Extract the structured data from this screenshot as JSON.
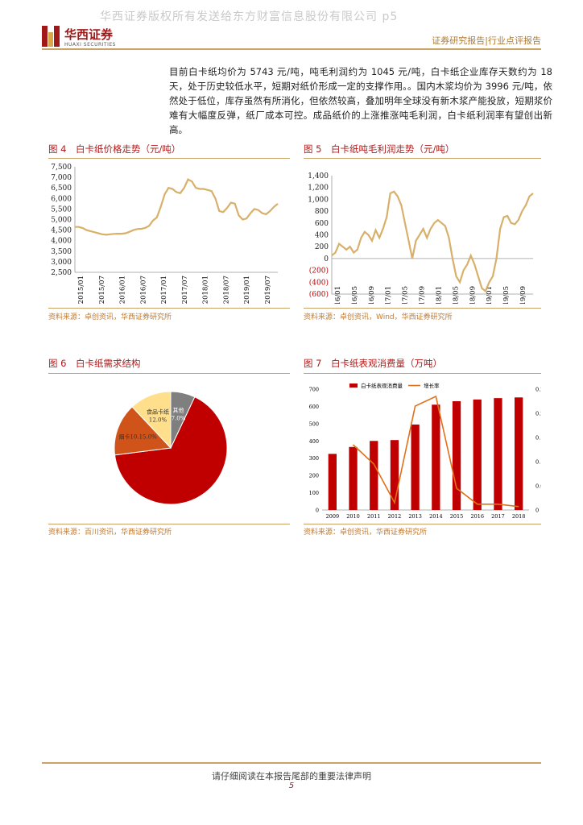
{
  "watermark": "华西证券版权所有发送给东方财富信息股份有限公司 p5",
  "logo": {
    "cn": "华西证券",
    "en": "HUAXI SECURITIES"
  },
  "header_right": "证券研究报告|行业点评报告",
  "paragraph": "目前白卡纸均价为 5743 元/吨，吨毛利润约为 1045 元/吨，白卡纸企业库存天数约为 18 天，处于历史较低水平，短期对纸价形成一定的支撑作用。。国内木浆均价为 3996 元/吨，依然处于低位，库存虽然有所消化，但依然较高，叠加明年全球没有新木浆产能投放，短期浆价难有大幅度反弹，纸厂成本可控。成品纸价的上涨推涨吨毛利润，白卡纸利润率有望创出新高。",
  "figures": {
    "fig4": {
      "title": "图 4　白卡纸价格走势（元/吨）",
      "source": "资料来源：卓创资讯，华西证券研究所"
    },
    "fig5": {
      "title": "图 5　白卡纸吨毛利润走势（元/吨）",
      "source": "资料来源：卓创资讯，Wind，华西证券研究所"
    },
    "fig6": {
      "title": "图 6　白卡纸需求结构",
      "source": "资料来源：百川资讯，华西证券研究所"
    },
    "fig7": {
      "title": "图 7　白卡纸表观消费量（万吨）",
      "source": "资料来源：卓创资讯，华西证券研究所"
    }
  },
  "chart_data": [
    {
      "id": "fig4",
      "type": "line",
      "yticks": [
        "7,500",
        "7,000",
        "6,500",
        "6,000",
        "5,500",
        "5,000",
        "4,500",
        "4,000",
        "3,500",
        "3,000",
        "2,500"
      ],
      "ylim": [
        2500,
        7500
      ],
      "xticks": [
        "2015/01",
        "2015/07",
        "2016/01",
        "2016/07",
        "2017/01",
        "2017/07",
        "2018/01",
        "2018/07",
        "2019/01",
        "2019/07"
      ],
      "color": "#d8b06a",
      "series": [
        {
          "values": [
            4650,
            4650,
            4600,
            4500,
            4450,
            4400,
            4350,
            4300,
            4280,
            4300,
            4320,
            4330,
            4330,
            4350,
            4420,
            4500,
            4550,
            4560,
            4600,
            4700,
            4950,
            5100,
            5600,
            6200,
            6500,
            6450,
            6300,
            6250,
            6500,
            6900,
            6800,
            6500,
            6450,
            6450,
            6400,
            6350,
            6000,
            5400,
            5350,
            5550,
            5800,
            5750,
            5200,
            5000,
            5050,
            5300,
            5500,
            5450,
            5300,
            5250,
            5400,
            5600,
            5750
          ]
        }
      ]
    },
    {
      "id": "fig5",
      "type": "line",
      "yticks": [
        "1,400",
        "1,200",
        "1,000",
        "800",
        "600",
        "400",
        "200",
        "0",
        "(200)",
        "(400)",
        "(600)"
      ],
      "ylim": [
        -600,
        1400
      ],
      "xticks": [
        "2016/01",
        "2016/05",
        "2016/09",
        "2017/01",
        "2017/05",
        "2017/09",
        "2018/01",
        "2018/05",
        "2018/09",
        "2019/01",
        "2019/05",
        "2019/09"
      ],
      "color": "#d8b06a",
      "series": [
        {
          "values": [
            50,
            100,
            250,
            200,
            150,
            200,
            100,
            150,
            350,
            450,
            400,
            300,
            480,
            350,
            500,
            700,
            1100,
            1130,
            1050,
            900,
            600,
            300,
            0,
            300,
            400,
            500,
            350,
            500,
            600,
            650,
            600,
            550,
            350,
            0,
            -300,
            -400,
            -200,
            -100,
            50,
            -100,
            -300,
            -500,
            -550,
            -400,
            -300,
            0,
            500,
            700,
            720,
            600,
            580,
            650,
            800,
            900,
            1050,
            1100
          ]
        }
      ]
    },
    {
      "id": "fig6",
      "type": "pie",
      "slices": [
        {
          "label": "",
          "value": 66,
          "color": "#c00000"
        },
        {
          "label": "烟卡10.15.0%",
          "value": 15,
          "color": "#d0531a"
        },
        {
          "label": "食品卡纸, 12.0%",
          "value": 12,
          "color": "#ffdf8b"
        },
        {
          "label": "其他, 7.0%",
          "value": 7,
          "color": "#7f7f7f"
        }
      ]
    },
    {
      "id": "fig7",
      "type": "bar",
      "categories": [
        "2009",
        "2010",
        "2011",
        "2012",
        "2013",
        "2014",
        "2015",
        "2016",
        "2017",
        "2018"
      ],
      "ylim": [
        0,
        700
      ],
      "yticks": [
        "700",
        "600",
        "500",
        "400",
        "300",
        "200",
        "100",
        "0"
      ],
      "y2ticks": [
        "0.25",
        "0.2",
        "0.15",
        "0.1",
        "0.05",
        "0"
      ],
      "y2lim": [
        0,
        0.25
      ],
      "legend": [
        "白卡纸表观消费量",
        "增长率"
      ],
      "series": [
        {
          "name": "白卡纸表观消费量",
          "values": [
            325,
            365,
            400,
            405,
            495,
            610,
            630,
            640,
            648,
            652
          ],
          "color": "#c00000"
        },
        {
          "name": "增长率",
          "values": [
            null,
            0.135,
            0.095,
            0.015,
            0.215,
            0.235,
            0.045,
            0.012,
            0.012,
            0.007
          ],
          "color": "#e0701a"
        }
      ]
    }
  ],
  "footer": {
    "text": "请仔细阅读在本报告尾部的重要法律声明",
    "page": "5"
  }
}
